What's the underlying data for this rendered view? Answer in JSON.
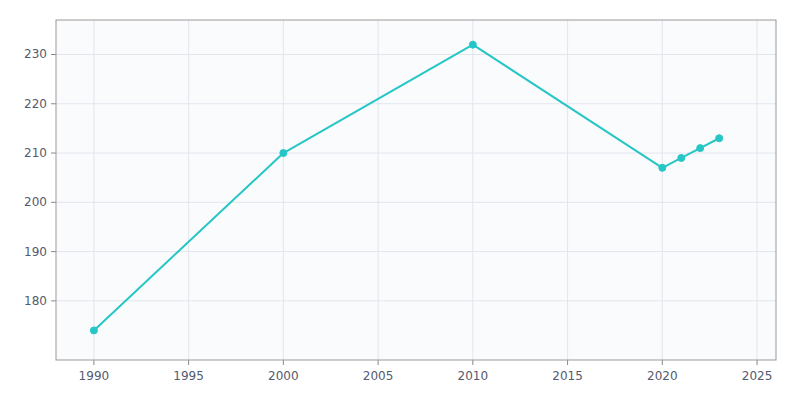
{
  "chart_data": {
    "type": "line",
    "x": [
      1990,
      2000,
      2010,
      2020,
      2021,
      2022,
      2023
    ],
    "values": [
      174,
      210,
      232,
      207,
      209,
      211,
      213
    ],
    "color": "#26c6c6",
    "marker": "circle",
    "xlim": [
      1988,
      2026
    ],
    "ylim": [
      168,
      237
    ],
    "xticks": [
      1990,
      1995,
      2000,
      2005,
      2010,
      2015,
      2020,
      2025
    ],
    "yticks": [
      180,
      190,
      200,
      210,
      220,
      230
    ],
    "grid": true
  }
}
